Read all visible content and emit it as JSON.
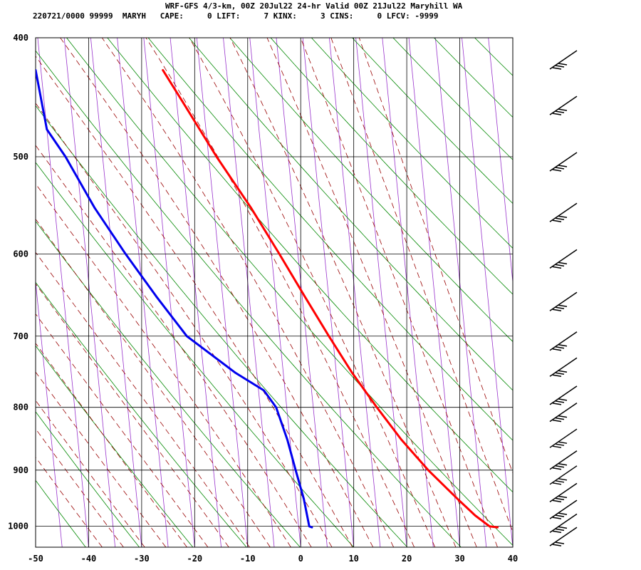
{
  "header": {
    "title": "WRF-GFS 4/3-km, 00Z 20Jul22 24-hr Valid 00Z 21Jul22 Maryhill WA",
    "stats": "220721/0000 99999  MARYH   CAPE:     0 LIFT:     7 KINX:     3 CINS:     0 LFCV: -9999"
  },
  "chart_data": {
    "type": "line",
    "title": "WRF-GFS 4/3-km, 00Z 20Jul22 24-hr Valid 00Z 21Jul22 Maryhill WA",
    "xlabel": "",
    "ylabel": "",
    "x_scale": "skew-T (isotherms skewed), degrees C",
    "y_scale": "log pressure (hPa), decreasing upward",
    "xlim": [
      -50,
      40
    ],
    "ylim": [
      1040,
      400
    ],
    "x_ticks": [
      -50,
      -40,
      -30,
      -20,
      -10,
      0,
      10,
      20,
      30,
      40
    ],
    "y_ticks": [
      400,
      500,
      600,
      700,
      800,
      900,
      1000
    ],
    "grid": true,
    "series": [
      {
        "name": "",
        "color": "#ff0000",
        "points": [
          {
            "p": 1002,
            "t": 37.5
          },
          {
            "p": 1000,
            "t": 36.0
          },
          {
            "p": 980,
            "t": 33.5
          },
          {
            "p": 950,
            "t": 30.5
          },
          {
            "p": 900,
            "t": 25.5
          },
          {
            "p": 850,
            "t": 21.0
          },
          {
            "p": 800,
            "t": 17.0
          },
          {
            "p": 750,
            "t": 13.0
          },
          {
            "p": 700,
            "t": 9.3
          },
          {
            "p": 650,
            "t": 5.5
          },
          {
            "p": 600,
            "t": 1.5
          },
          {
            "p": 550,
            "t": -3.0
          },
          {
            "p": 500,
            "t": -8.5
          },
          {
            "p": 450,
            "t": -14.0
          },
          {
            "p": 425,
            "t": -17.0
          }
        ]
      },
      {
        "name": "",
        "color": "#0000ee",
        "points": [
          {
            "p": 1002,
            "t": 2.5
          },
          {
            "p": 1000,
            "t": 2.0
          },
          {
            "p": 950,
            "t": 1.5
          },
          {
            "p": 900,
            "t": 0.5
          },
          {
            "p": 850,
            "t": -0.5
          },
          {
            "p": 800,
            "t": -2.0
          },
          {
            "p": 775,
            "t": -4.0
          },
          {
            "p": 750,
            "t": -9.0
          },
          {
            "p": 700,
            "t": -17.5
          },
          {
            "p": 650,
            "t": -22.5
          },
          {
            "p": 600,
            "t": -27.5
          },
          {
            "p": 550,
            "t": -32.5
          },
          {
            "p": 500,
            "t": -37.0
          },
          {
            "p": 475,
            "t": -40.0
          },
          {
            "p": 425,
            "t": -41.0
          }
        ]
      }
    ],
    "background_lines": {
      "isotherm_color": "#9933cc",
      "dry_adiabat_color": "#008800",
      "moist_adiabat_color": "#990000"
    },
    "wind_barbs": {
      "color": "#000000",
      "barbs": [
        {
          "p": 400,
          "flags": 3
        },
        {
          "p": 450,
          "flags": 3
        },
        {
          "p": 500,
          "flags": 3
        },
        {
          "p": 550,
          "flags": 3
        },
        {
          "p": 600,
          "flags": 3
        },
        {
          "p": 650,
          "flags": 3
        },
        {
          "p": 700,
          "flags": 3
        },
        {
          "p": 735,
          "flags": 3
        },
        {
          "p": 775,
          "flags": 3
        },
        {
          "p": 800,
          "flags": 3
        },
        {
          "p": 840,
          "flags": 3
        },
        {
          "p": 875,
          "flags": 3
        },
        {
          "p": 900,
          "flags": 3
        },
        {
          "p": 930,
          "flags": 3
        },
        {
          "p": 960,
          "flags": 3
        },
        {
          "p": 985,
          "flags": 3
        },
        {
          "p": 1010,
          "flags": 2
        }
      ]
    }
  }
}
